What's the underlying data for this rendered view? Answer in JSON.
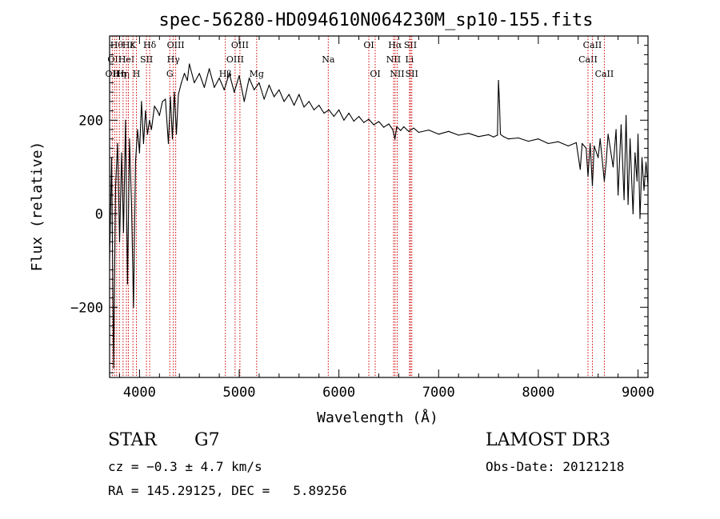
{
  "chart_data": {
    "type": "line",
    "title": "spec-56280-HD094610N064230M_sp10-155.fits",
    "xlabel": "Wavelength (Å)",
    "ylabel": "Flux (relative)",
    "xlim": [
      3700,
      9100
    ],
    "ylim": [
      -350,
      380
    ],
    "x_ticks": [
      4000,
      5000,
      6000,
      7000,
      8000,
      9000
    ],
    "y_ticks": [
      -200,
      0,
      200
    ],
    "grid": false,
    "series": [
      {
        "name": "flux",
        "points": [
          [
            3700,
            -100
          ],
          [
            3720,
            120
          ],
          [
            3740,
            -330
          ],
          [
            3760,
            60
          ],
          [
            3780,
            150
          ],
          [
            3800,
            -60
          ],
          [
            3820,
            130
          ],
          [
            3840,
            -40
          ],
          [
            3860,
            200
          ],
          [
            3880,
            -150
          ],
          [
            3900,
            160
          ],
          [
            3920,
            20
          ],
          [
            3940,
            -200
          ],
          [
            3960,
            110
          ],
          [
            3980,
            180
          ],
          [
            4000,
            130
          ],
          [
            4020,
            240
          ],
          [
            4040,
            150
          ],
          [
            4060,
            220
          ],
          [
            4080,
            170
          ],
          [
            4100,
            200
          ],
          [
            4120,
            180
          ],
          [
            4150,
            230
          ],
          [
            4180,
            220
          ],
          [
            4200,
            210
          ],
          [
            4230,
            240
          ],
          [
            4260,
            245
          ],
          [
            4290,
            150
          ],
          [
            4310,
            250
          ],
          [
            4330,
            160
          ],
          [
            4350,
            260
          ],
          [
            4370,
            170
          ],
          [
            4390,
            255
          ],
          [
            4420,
            280
          ],
          [
            4450,
            300
          ],
          [
            4480,
            285
          ],
          [
            4500,
            320
          ],
          [
            4550,
            280
          ],
          [
            4600,
            300
          ],
          [
            4650,
            270
          ],
          [
            4700,
            310
          ],
          [
            4750,
            270
          ],
          [
            4800,
            290
          ],
          [
            4850,
            265
          ],
          [
            4900,
            300
          ],
          [
            4950,
            260
          ],
          [
            5000,
            295
          ],
          [
            5050,
            240
          ],
          [
            5100,
            290
          ],
          [
            5150,
            265
          ],
          [
            5200,
            280
          ],
          [
            5250,
            245
          ],
          [
            5300,
            275
          ],
          [
            5350,
            250
          ],
          [
            5400,
            265
          ],
          [
            5450,
            240
          ],
          [
            5500,
            255
          ],
          [
            5550,
            232
          ],
          [
            5600,
            255
          ],
          [
            5650,
            228
          ],
          [
            5700,
            240
          ],
          [
            5750,
            222
          ],
          [
            5800,
            232
          ],
          [
            5850,
            215
          ],
          [
            5900,
            222
          ],
          [
            5950,
            208
          ],
          [
            6000,
            222
          ],
          [
            6050,
            200
          ],
          [
            6100,
            215
          ],
          [
            6150,
            198
          ],
          [
            6200,
            208
          ],
          [
            6250,
            195
          ],
          [
            6300,
            202
          ],
          [
            6350,
            190
          ],
          [
            6400,
            197
          ],
          [
            6450,
            185
          ],
          [
            6500,
            192
          ],
          [
            6540,
            180
          ],
          [
            6562,
            160
          ],
          [
            6580,
            186
          ],
          [
            6620,
            178
          ],
          [
            6650,
            186
          ],
          [
            6700,
            176
          ],
          [
            6750,
            183
          ],
          [
            6800,
            174
          ],
          [
            6900,
            179
          ],
          [
            7000,
            170
          ],
          [
            7100,
            176
          ],
          [
            7200,
            168
          ],
          [
            7300,
            172
          ],
          [
            7400,
            165
          ],
          [
            7500,
            169
          ],
          [
            7550,
            164
          ],
          [
            7590,
            168
          ],
          [
            7600,
            285
          ],
          [
            7610,
            240
          ],
          [
            7620,
            170
          ],
          [
            7650,
            165
          ],
          [
            7700,
            160
          ],
          [
            7800,
            162
          ],
          [
            7900,
            155
          ],
          [
            8000,
            160
          ],
          [
            8100,
            150
          ],
          [
            8200,
            154
          ],
          [
            8300,
            145
          ],
          [
            8380,
            152
          ],
          [
            8420,
            95
          ],
          [
            8440,
            150
          ],
          [
            8480,
            140
          ],
          [
            8498,
            80
          ],
          [
            8520,
            150
          ],
          [
            8542,
            60
          ],
          [
            8560,
            145
          ],
          [
            8600,
            120
          ],
          [
            8620,
            160
          ],
          [
            8662,
            70
          ],
          [
            8680,
            110
          ],
          [
            8700,
            170
          ],
          [
            8750,
            100
          ],
          [
            8780,
            180
          ],
          [
            8800,
            40
          ],
          [
            8830,
            190
          ],
          [
            8860,
            30
          ],
          [
            8880,
            210
          ],
          [
            8900,
            20
          ],
          [
            8920,
            160
          ],
          [
            8950,
            0
          ],
          [
            8970,
            130
          ],
          [
            8990,
            70
          ],
          [
            9000,
            170
          ],
          [
            9020,
            -10
          ],
          [
            9040,
            120
          ],
          [
            9060,
            50
          ],
          [
            9080,
            110
          ],
          [
            9100,
            60
          ]
        ]
      }
    ],
    "line_color": "#000000",
    "marker_color": "#cc0000",
    "line_markers": [
      {
        "wl": 3727,
        "label": "OII",
        "row": 2
      },
      {
        "wl": 3750,
        "label": "OII",
        "row": 1
      },
      {
        "wl": 3771,
        "label": "Hθ",
        "row": 0
      },
      {
        "wl": 3798,
        "label": "Hη",
        "row": 2
      },
      {
        "wl": 3835,
        "label": "Hη",
        "row": 2
      },
      {
        "wl": 3869,
        "label": "HeI",
        "row": 1
      },
      {
        "wl": 3889,
        "label": "Hε",
        "row": 0
      },
      {
        "wl": 3934,
        "label": "K",
        "row": 0
      },
      {
        "wl": 3969,
        "label": "H",
        "row": 2
      },
      {
        "wl": 4070,
        "label": "SII",
        "row": 1
      },
      {
        "wl": 4102,
        "label": "Hδ",
        "row": 0
      },
      {
        "wl": 4304,
        "label": "G",
        "row": 2
      },
      {
        "wl": 4340,
        "label": "Hγ",
        "row": 1
      },
      {
        "wl": 4363,
        "label": "OIII",
        "row": 0
      },
      {
        "wl": 4861,
        "label": "Hβ",
        "row": 2
      },
      {
        "wl": 4959,
        "label": "OIII",
        "row": 1
      },
      {
        "wl": 5007,
        "label": "OIII",
        "row": 0
      },
      {
        "wl": 5175,
        "label": "Mg",
        "row": 2
      },
      {
        "wl": 5893,
        "label": "Na",
        "row": 1
      },
      {
        "wl": 6300,
        "label": "OI",
        "row": 0
      },
      {
        "wl": 6364,
        "label": "OI",
        "row": 2
      },
      {
        "wl": 6548,
        "label": "NII",
        "row": 1
      },
      {
        "wl": 6563,
        "label": "Hα",
        "row": 0
      },
      {
        "wl": 6584,
        "label": "NII",
        "row": 2
      },
      {
        "wl": 6708,
        "label": "Li",
        "row": 1
      },
      {
        "wl": 6717,
        "label": "SII",
        "row": 0
      },
      {
        "wl": 6731,
        "label": "SII",
        "row": 2
      },
      {
        "wl": 8498,
        "label": "CaII",
        "row": 1
      },
      {
        "wl": 8542,
        "label": "CaII",
        "row": 0
      },
      {
        "wl": 8662,
        "label": "CaII",
        "row": 2
      }
    ]
  },
  "info": {
    "object_class": "STAR",
    "subclass": "G7",
    "survey": "LAMOST DR3",
    "cz": "cz = −0.3 ± 4.7 km/s",
    "obs_date": "Obs-Date: 20121218",
    "coords": "RA = 145.29125, DEC =   5.89256"
  }
}
